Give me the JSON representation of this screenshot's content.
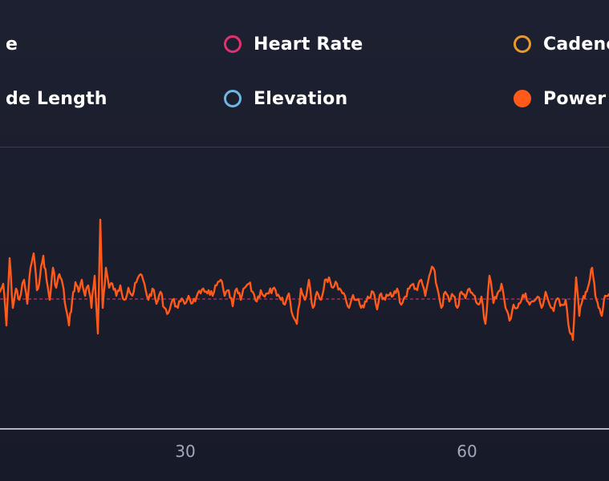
{
  "legend": {
    "items": [
      {
        "key": "pace",
        "label": "e",
        "color": "#ffffff",
        "filled": false
      },
      {
        "key": "heart_rate",
        "label": "Heart Rate",
        "color": "#e0326e",
        "filled": false
      },
      {
        "key": "cadence",
        "label": "Cadenc",
        "color": "#e89a2c",
        "filled": false
      },
      {
        "key": "stride_length",
        "label": "de Length",
        "color": "#ffffff",
        "filled": false
      },
      {
        "key": "elevation",
        "label": "Elevation",
        "color": "#6fb6e6",
        "filled": false
      },
      {
        "key": "power",
        "label": "Power",
        "color": "#ff5a1a",
        "filled": true
      }
    ]
  },
  "chart_data": {
    "type": "line",
    "series": [
      {
        "name": "Power",
        "color": "#ff5a1a"
      }
    ],
    "x_ticks": [
      30,
      60
    ],
    "x_visible_range": [
      10.5,
      75.5
    ],
    "reference_line": {
      "style": "dashed",
      "color": "#e0326e"
    },
    "grid": false,
    "note": "trace varies around a dashed average line; largest spike near x=21"
  }
}
